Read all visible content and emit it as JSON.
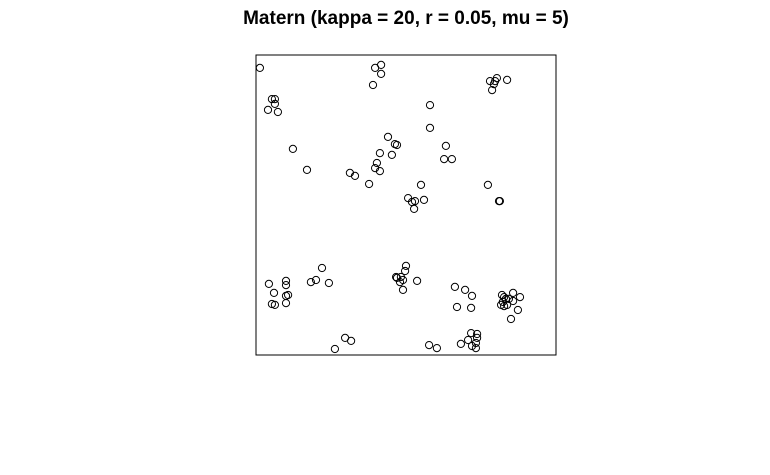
{
  "chart_data": {
    "type": "scatter",
    "title": "Matern (kappa = 20, r = 0.05, mu = 5)",
    "xlabel": "",
    "ylabel": "",
    "xlim": [
      0,
      1
    ],
    "ylim": [
      0,
      1
    ],
    "axes_visible": false,
    "grid": false,
    "legend": "none",
    "marker": "open-circle",
    "marker_color": "#000000",
    "points": [
      [
        0.013,
        0.957
      ],
      [
        0.053,
        0.853
      ],
      [
        0.063,
        0.853
      ],
      [
        0.063,
        0.837
      ],
      [
        0.04,
        0.817
      ],
      [
        0.073,
        0.81
      ],
      [
        0.397,
        0.957
      ],
      [
        0.417,
        0.967
      ],
      [
        0.417,
        0.937
      ],
      [
        0.39,
        0.9
      ],
      [
        0.78,
        0.913
      ],
      [
        0.797,
        0.913
      ],
      [
        0.803,
        0.923
      ],
      [
        0.793,
        0.903
      ],
      [
        0.837,
        0.917
      ],
      [
        0.787,
        0.883
      ],
      [
        0.58,
        0.833
      ],
      [
        0.58,
        0.757
      ],
      [
        0.633,
        0.697
      ],
      [
        0.627,
        0.653
      ],
      [
        0.653,
        0.653
      ],
      [
        0.44,
        0.727
      ],
      [
        0.463,
        0.703
      ],
      [
        0.47,
        0.7
      ],
      [
        0.453,
        0.667
      ],
      [
        0.413,
        0.673
      ],
      [
        0.397,
        0.623
      ],
      [
        0.413,
        0.613
      ],
      [
        0.403,
        0.64
      ],
      [
        0.313,
        0.607
      ],
      [
        0.33,
        0.597
      ],
      [
        0.377,
        0.57
      ],
      [
        0.123,
        0.687
      ],
      [
        0.17,
        0.617
      ],
      [
        0.55,
        0.567
      ],
      [
        0.507,
        0.523
      ],
      [
        0.56,
        0.517
      ],
      [
        0.52,
        0.51
      ],
      [
        0.527,
        0.487
      ],
      [
        0.53,
        0.513
      ],
      [
        0.773,
        0.567
      ],
      [
        0.81,
        0.513
      ],
      [
        0.813,
        0.513
      ],
      [
        0.5,
        0.297
      ],
      [
        0.497,
        0.28
      ],
      [
        0.483,
        0.26
      ],
      [
        0.47,
        0.257
      ],
      [
        0.467,
        0.26
      ],
      [
        0.48,
        0.243
      ],
      [
        0.49,
        0.25
      ],
      [
        0.537,
        0.247
      ],
      [
        0.49,
        0.217
      ],
      [
        0.22,
        0.29
      ],
      [
        0.2,
        0.25
      ],
      [
        0.183,
        0.243
      ],
      [
        0.243,
        0.24
      ],
      [
        0.043,
        0.237
      ],
      [
        0.06,
        0.207
      ],
      [
        0.1,
        0.247
      ],
      [
        0.1,
        0.233
      ],
      [
        0.107,
        0.2
      ],
      [
        0.1,
        0.197
      ],
      [
        0.053,
        0.17
      ],
      [
        0.063,
        0.167
      ],
      [
        0.1,
        0.173
      ],
      [
        0.663,
        0.227
      ],
      [
        0.697,
        0.217
      ],
      [
        0.72,
        0.197
      ],
      [
        0.67,
        0.16
      ],
      [
        0.717,
        0.157
      ],
      [
        0.82,
        0.2
      ],
      [
        0.827,
        0.193
      ],
      [
        0.833,
        0.187
      ],
      [
        0.823,
        0.177
      ],
      [
        0.843,
        0.187
      ],
      [
        0.857,
        0.207
      ],
      [
        0.88,
        0.193
      ],
      [
        0.837,
        0.167
      ],
      [
        0.857,
        0.18
      ],
      [
        0.817,
        0.167
      ],
      [
        0.827,
        0.163
      ],
      [
        0.873,
        0.15
      ],
      [
        0.85,
        0.12
      ],
      [
        0.717,
        0.073
      ],
      [
        0.737,
        0.07
      ],
      [
        0.737,
        0.057
      ],
      [
        0.733,
        0.04
      ],
      [
        0.707,
        0.05
      ],
      [
        0.72,
        0.03
      ],
      [
        0.733,
        0.023
      ],
      [
        0.683,
        0.037
      ],
      [
        0.577,
        0.033
      ],
      [
        0.603,
        0.023
      ],
      [
        0.297,
        0.057
      ],
      [
        0.317,
        0.047
      ],
      [
        0.263,
        0.02
      ]
    ]
  }
}
